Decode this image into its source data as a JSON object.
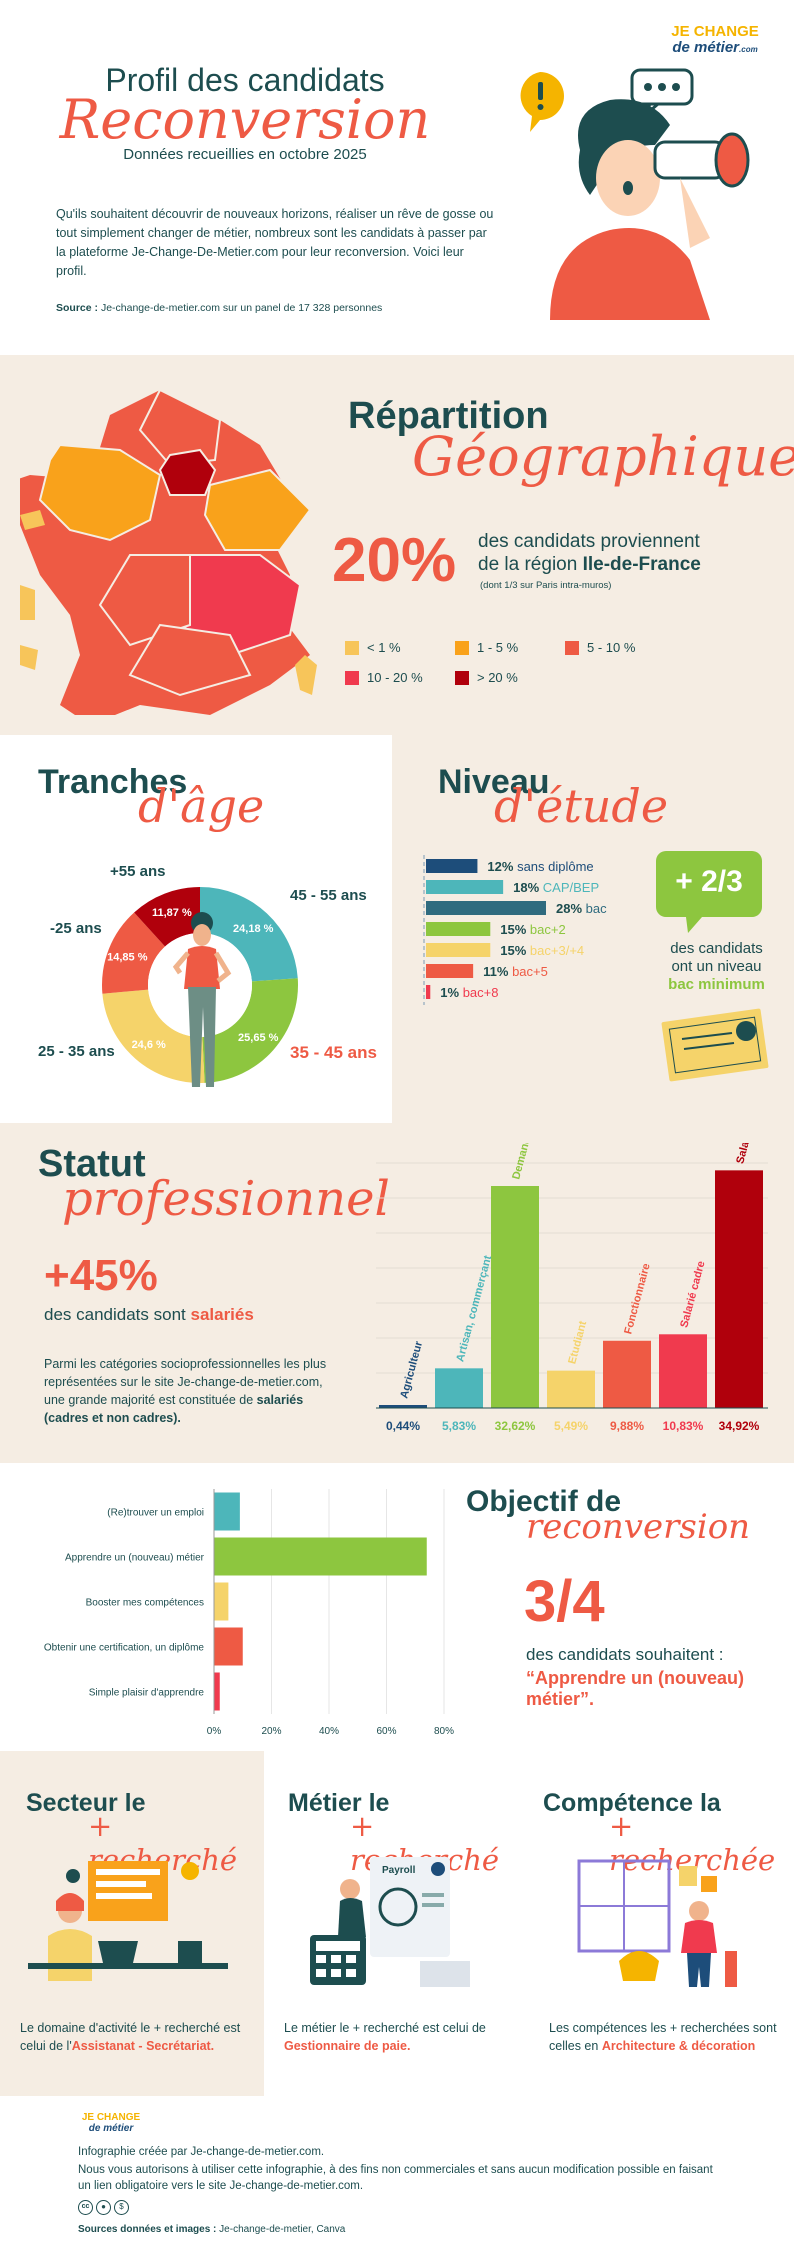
{
  "brand": {
    "line1": "JE CHANGE",
    "line2": "de métier",
    "suffix": ".com"
  },
  "header": {
    "title": "Profil des candidats",
    "title_script": "Reconversion",
    "subtitle": "Données recueillies en octobre 2025",
    "intro": "Qu'ils souhaitent découvrir de nouveaux horizons, réaliser un rêve de gosse ou tout simplement changer de métier, nombreux sont les candidats à passer par la plateforme Je-Change-De-Metier.com pour leur reconversion. Voici leur profil.",
    "source_label": "Source :",
    "source_text": "Je-change-de-metier.com sur un panel de 17 328 personnes"
  },
  "geo": {
    "title": "Répartition",
    "title_script": "Géographique",
    "big": "20%",
    "line1": "des candidats proviennent",
    "line2_pre": "de la région ",
    "line2_bold": "Ile-de-France",
    "note": "(dont 1/3 sur Paris intra-muros)",
    "legend": [
      {
        "label": "< 1 %",
        "color": "#f7c55a"
      },
      {
        "label": "1 - 5 %",
        "color": "#f9a21b"
      },
      {
        "label": "5 - 10 %",
        "color": "#ee5a44"
      },
      {
        "label": "10 - 20 %",
        "color": "#f03a4e"
      },
      {
        "label": "> 20 %",
        "color": "#b0000c"
      }
    ]
  },
  "age": {
    "title": "Tranches",
    "title_script": "d'âge",
    "labels": [
      "45 - 55 ans",
      "35 - 45 ans",
      "25 - 35 ans",
      "-25 ans",
      "+55 ans"
    ]
  },
  "edu": {
    "title": "Niveau",
    "title_script": "d'étude",
    "big": "+ 2/3",
    "side1": "des candidats",
    "side2": "ont un niveau",
    "side3": "bac minimum"
  },
  "statut": {
    "title": "Statut",
    "title_script": "professionnel",
    "big": "+45%",
    "line_pre": "des candidats sont ",
    "line_bold": "salariés",
    "para_pre": "Parmi les catégories socioprofessionnelles les plus représentées sur le site Je-change-de-metier.com, une grande majorité est constituée de ",
    "para_bold": "salariés (cadres et non cadres)."
  },
  "objectif": {
    "title": "Objectif de",
    "title_script": "reconversion",
    "big": "3/4",
    "line1": "des candidats souhaitent :",
    "quote": "“Apprendre un (nouveau) métier”."
  },
  "cards": [
    {
      "title": "Secteur le",
      "title_script": "+ recherché",
      "text_pre": "Le domaine d'activité le + recherché est celui de l'",
      "text_bold": "Assistanat - Secrétariat."
    },
    {
      "title": "Métier le",
      "title_script": "+ recherché",
      "text_pre": "Le métier le + recherché est celui de ",
      "text_bold": "Gestionnaire de paie."
    },
    {
      "title": "Compétence la",
      "title_script": "+ recherchée",
      "text_pre": "Les compétences les + recherchées sont celles en ",
      "text_bold": "Architecture & décoration"
    }
  ],
  "payroll_label": "Payroll",
  "footer": {
    "line1": "Infographie créée par Je-change-de-metier.com.",
    "line2": "Nous vous autorisons à utiliser cette infographie, à des fins non commerciales et sans aucun modification possible en faisant un lien obligatoire vers le site Je-change-de-metier.com.",
    "sources_label": "Sources données et images :",
    "sources_text": "Je-change-de-metier, Canva"
  },
  "chart_data": [
    {
      "type": "pie",
      "categories": [
        "45 - 55 ans",
        "35 - 45 ans",
        "25 - 35 ans",
        "-25 ans",
        "+55 ans"
      ],
      "values": [
        24.18,
        25.65,
        24.6,
        14.85,
        11.87
      ],
      "value_labels": [
        "24,18 %",
        "25,65 %",
        "24,6 %",
        "14,85 %",
        "11,87 %"
      ],
      "colors": [
        "#4db6ba",
        "#8dc63f",
        "#f5d36a",
        "#ee5a44",
        "#b0000c"
      ]
    },
    {
      "type": "bar",
      "orientation": "horizontal",
      "values": [
        12,
        18,
        28,
        15,
        15,
        11,
        1
      ],
      "value_labels": [
        "12%",
        "18%",
        "28%",
        "15%",
        "15%",
        "11%",
        "1%"
      ],
      "categories": [
        "sans diplôme",
        "CAP/BEP",
        "bac",
        "bac+2",
        "bac+3/+4",
        "bac+5",
        "bac+8"
      ],
      "colors": [
        "#1d4d7a",
        "#4db6ba",
        "#2f6b7f",
        "#8dc63f",
        "#f5d36a",
        "#ee5a44",
        "#f03a4e"
      ]
    },
    {
      "type": "bar",
      "categories": [
        "Agriculteur",
        "Artisan, commerçant",
        "Demandeur d'emploi",
        "Etudiant",
        "Fonctionnaire",
        "Salarié cadre",
        "Salarié"
      ],
      "values": [
        0.44,
        5.83,
        32.62,
        5.49,
        9.88,
        10.83,
        34.92
      ],
      "value_labels": [
        "0,44%",
        "5,83%",
        "32,62%",
        "5,49%",
        "9,88%",
        "10,83%",
        "34,92%"
      ],
      "colors": [
        "#1d4d7a",
        "#4db6ba",
        "#8dc63f",
        "#f5d36a",
        "#ee5a44",
        "#f03a4e",
        "#b0000c"
      ],
      "ylim": [
        0,
        36
      ]
    },
    {
      "type": "bar",
      "orientation": "horizontal",
      "categories": [
        "(Re)trouver un emploi",
        "Apprendre un (nouveau) métier",
        "Booster mes compétences",
        "Obtenir une certification, un diplôme",
        "Simple plaisir d'apprendre"
      ],
      "values": [
        9,
        74,
        5,
        10,
        2
      ],
      "colors": [
        "#4db6ba",
        "#8dc63f",
        "#f5d36a",
        "#ee5a44",
        "#f03a4e"
      ],
      "xlim": [
        0,
        80
      ],
      "xticks": [
        "0%",
        "20%",
        "40%",
        "60%",
        "80%"
      ],
      "grid": true
    }
  ]
}
